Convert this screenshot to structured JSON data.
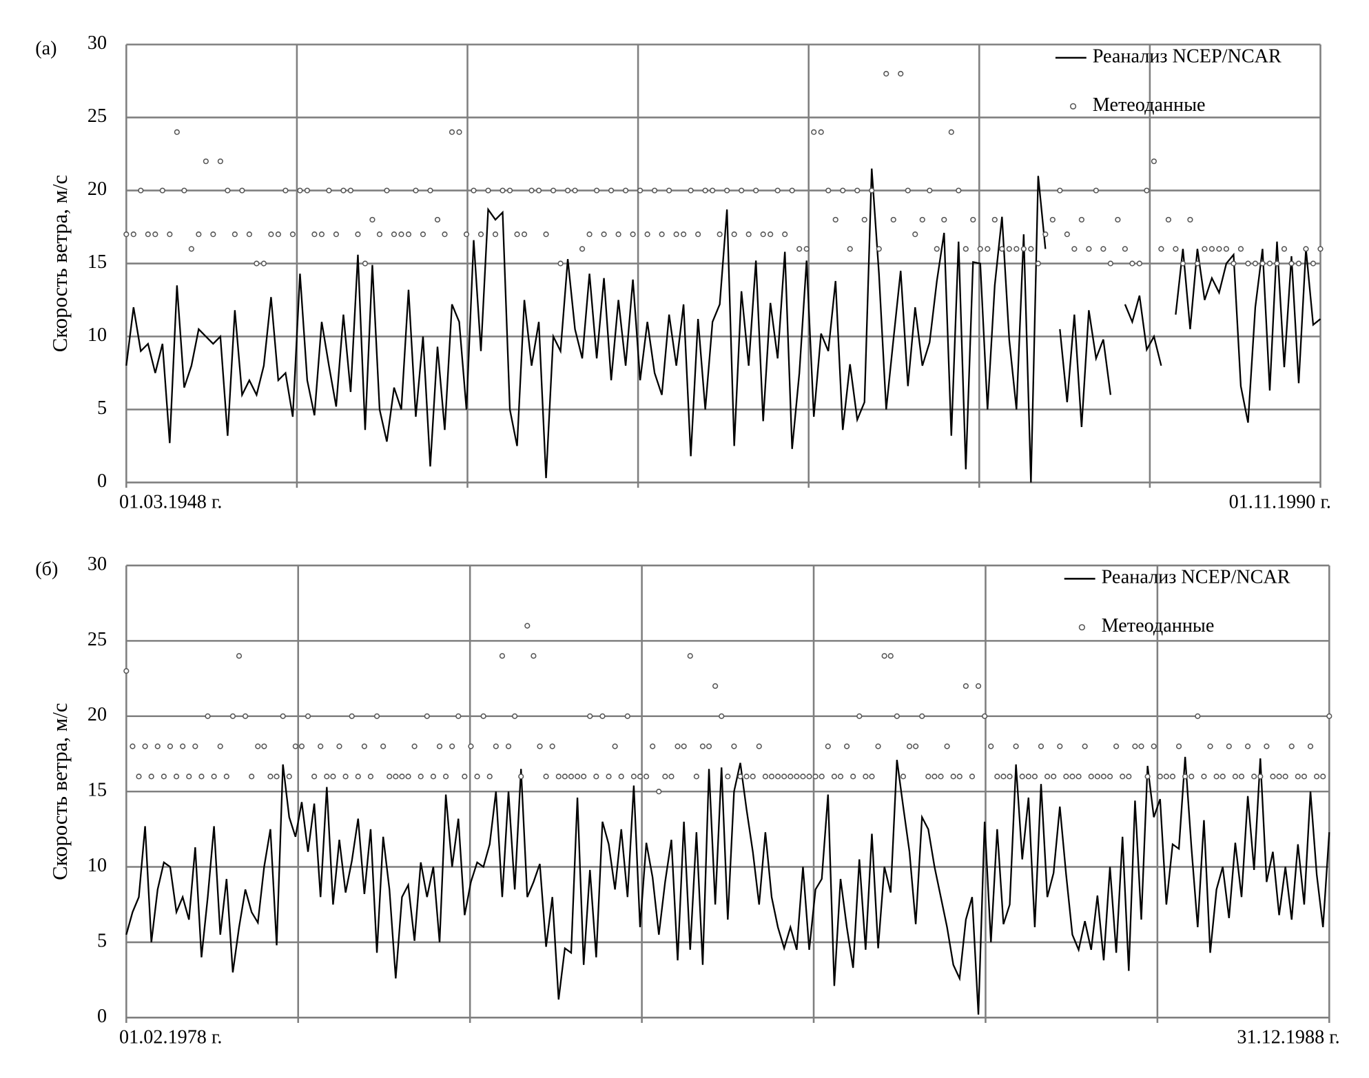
{
  "chart_data": [
    {
      "type": "line",
      "panel_label": "(a)",
      "ylabel": "Скорость ветра, м/с",
      "ylim": [
        0,
        30
      ],
      "yticks": [
        0,
        5,
        10,
        15,
        20,
        25,
        30
      ],
      "grid": true,
      "legend": "upper right",
      "categories": [
        "01.03.1948 г.",
        null,
        null,
        null,
        null,
        null,
        null,
        null,
        null,
        null,
        null,
        null,
        null,
        null,
        null,
        null,
        null,
        null,
        null,
        null,
        null,
        null,
        null,
        null,
        null,
        null,
        null,
        null,
        null,
        null,
        null,
        null,
        null,
        null,
        null,
        null,
        null,
        null,
        null,
        null,
        null,
        null,
        null,
        null,
        null,
        null,
        null,
        null,
        null,
        null,
        null,
        null,
        null,
        null,
        null,
        null,
        null,
        null,
        null,
        null,
        null,
        null,
        null,
        null,
        null,
        null,
        null,
        null,
        null,
        null,
        null,
        null,
        null,
        null,
        null,
        null,
        null,
        null,
        null,
        null,
        null,
        null,
        null,
        null,
        null,
        null,
        null,
        null,
        null,
        null,
        null,
        null,
        null,
        null,
        null,
        null,
        null,
        null,
        null,
        null,
        null,
        null,
        null,
        null,
        null,
        null,
        null,
        null,
        null,
        null,
        null,
        null,
        null,
        null,
        null,
        null,
        null,
        null,
        null,
        null,
        null,
        null,
        null,
        null,
        null,
        null,
        null,
        null,
        null,
        null,
        null,
        null,
        null,
        null,
        null,
        null,
        null,
        null,
        null,
        null,
        null,
        null,
        null,
        null,
        null,
        null,
        null,
        null,
        null,
        null,
        null,
        null,
        null,
        null,
        null,
        null,
        null,
        null,
        null,
        null,
        null,
        null,
        null,
        null,
        null,
        "01.11.1990 г."
      ],
      "series": [
        {
          "name": "Реанализ NCEP/NCAR",
          "type": "line",
          "color": "#000000",
          "values": [
            8,
            12,
            9,
            9.5,
            7.5,
            9.5,
            2.7,
            13.5,
            6.5,
            8,
            10.5,
            10,
            9.5,
            10,
            3.2,
            11.8,
            6,
            7,
            6,
            8,
            12.7,
            7,
            7.5,
            4.5,
            14.3,
            7,
            4.6,
            11,
            8,
            5.2,
            11.5,
            6.2,
            15.6,
            3.6,
            14.9,
            5,
            2.8,
            6.5,
            5,
            13.2,
            4.5,
            10,
            1.1,
            9.3,
            3.6,
            12.2,
            11,
            5,
            16.6,
            9,
            18.7,
            18,
            18.5,
            5,
            2.5,
            12.5,
            8,
            11,
            0.3,
            10,
            9,
            15.3,
            10.5,
            8.5,
            14.3,
            8.5,
            14,
            7,
            12.5,
            8,
            13.9,
            7,
            11,
            7.5,
            6,
            11.5,
            8,
            12.2,
            1.8,
            11.2,
            5,
            11,
            12.2,
            18.7,
            2.5,
            13.1,
            8,
            15.2,
            4.2,
            12.3,
            8.5,
            15.8,
            2.3,
            7.5,
            15.2,
            4.5,
            10.2,
            9,
            13.8,
            3.6,
            8.1,
            4.3,
            5.5,
            21.5,
            14.3,
            5,
            9.8,
            14.5,
            6.6,
            12,
            8,
            9.6,
            13.8,
            17.1,
            3.2,
            16.5,
            0.9,
            15.1,
            15,
            5,
            13.5,
            18.2,
            9.8,
            5,
            17,
            0,
            21,
            16,
            null,
            10.5,
            5.5,
            11.5,
            3.8,
            11.8,
            8.5,
            9.8,
            6,
            null,
            12.2,
            11,
            12.8,
            9.1,
            10,
            8,
            null,
            11.5,
            16,
            10.5,
            16,
            12.5,
            14,
            13,
            15,
            15.6,
            6.6,
            4.1,
            12,
            16,
            6.3,
            16.5,
            7.9,
            15.5,
            6.8,
            16,
            10.8,
            11.2
          ]
        },
        {
          "name": "Метеоданные",
          "type": "scatter",
          "color": "#555555",
          "values": [
            17,
            17,
            20,
            17,
            17,
            20,
            17,
            24,
            20,
            16,
            17,
            22,
            17,
            22,
            20,
            17,
            20,
            17,
            15,
            15,
            17,
            17,
            20,
            17,
            20,
            20,
            17,
            17,
            20,
            17,
            20,
            20,
            17,
            15,
            18,
            17,
            20,
            17,
            17,
            17,
            20,
            17,
            20,
            18,
            17,
            24,
            24,
            17,
            20,
            17,
            20,
            17,
            20,
            20,
            17,
            17,
            20,
            20,
            17,
            20,
            15,
            20,
            20,
            16,
            17,
            20,
            17,
            20,
            17,
            20,
            17,
            20,
            17,
            20,
            17,
            20,
            17,
            17,
            20,
            17,
            20,
            20,
            17,
            20,
            17,
            20,
            17,
            20,
            17,
            17,
            20,
            17,
            20,
            16,
            16,
            24,
            24,
            20,
            18,
            20,
            16,
            20,
            18,
            20,
            16,
            28,
            18,
            28,
            20,
            17,
            18,
            20,
            16,
            18,
            24,
            20,
            16,
            18,
            16,
            16,
            18,
            16,
            16,
            16,
            16,
            16,
            15,
            17,
            18,
            20,
            17,
            16,
            18,
            16,
            20,
            16,
            15,
            18,
            16,
            15,
            15,
            20,
            22,
            16,
            18,
            16,
            15,
            18,
            15,
            16,
            16,
            16,
            16,
            15,
            16,
            15,
            15,
            15,
            15,
            15,
            16,
            15,
            15,
            16,
            15,
            16
          ]
        }
      ]
    },
    {
      "type": "line",
      "panel_label": "(б)",
      "ylabel": "Скорость ветра, м/с",
      "ylim": [
        0,
        30
      ],
      "yticks": [
        0,
        5,
        10,
        15,
        20,
        25,
        30
      ],
      "grid": true,
      "legend": "upper right",
      "categories": [
        "01.02.1978 г.",
        null,
        null,
        null,
        null,
        null,
        null,
        null,
        null,
        null,
        null,
        null,
        null,
        null,
        null,
        null,
        null,
        null,
        null,
        null,
        null,
        null,
        null,
        null,
        null,
        null,
        null,
        null,
        null,
        null,
        null,
        null,
        null,
        null,
        null,
        null,
        null,
        null,
        null,
        null,
        null,
        null,
        null,
        null,
        null,
        null,
        null,
        null,
        null,
        null,
        null,
        null,
        null,
        null,
        null,
        null,
        null,
        null,
        null,
        null,
        null,
        null,
        null,
        null,
        null,
        null,
        null,
        null,
        null,
        null,
        null,
        null,
        null,
        null,
        null,
        null,
        null,
        null,
        null,
        null,
        null,
        null,
        null,
        null,
        null,
        null,
        null,
        null,
        null,
        null,
        null,
        null,
        null,
        null,
        null,
        null,
        null,
        null,
        null,
        null,
        null,
        null,
        null,
        null,
        null,
        null,
        null,
        null,
        null,
        null,
        null,
        null,
        null,
        null,
        null,
        null,
        null,
        null,
        null,
        null,
        null,
        null,
        null,
        null,
        null,
        null,
        null,
        null,
        null,
        null,
        null,
        null,
        null,
        null,
        null,
        null,
        null,
        null,
        null,
        null,
        null,
        null,
        null,
        null,
        null,
        null,
        null,
        null,
        null,
        null,
        null,
        null,
        null,
        null,
        null,
        null,
        null,
        null,
        null,
        null,
        null,
        null,
        null,
        null,
        null,
        null,
        null,
        null,
        null,
        null,
        null,
        null,
        null,
        null,
        null,
        null,
        null,
        null,
        null,
        null,
        null,
        null,
        null,
        null,
        null,
        null,
        null,
        null,
        null,
        null,
        null,
        null,
        "31.12.1988 г."
      ],
      "series": [
        {
          "name": "Реанализ NCEP/NCAR",
          "type": "line",
          "color": "#000000",
          "values": [
            5.5,
            7,
            8,
            12.7,
            5,
            8.5,
            10.3,
            10,
            7,
            8,
            6.5,
            11.3,
            4,
            8,
            12.7,
            5.5,
            9.2,
            3,
            6,
            8.5,
            7,
            6.3,
            10,
            12.5,
            4.8,
            16.8,
            13.3,
            12,
            14.3,
            11,
            14.2,
            8,
            15.3,
            7.5,
            11.8,
            8.3,
            10.4,
            13.2,
            8.2,
            12.5,
            4.3,
            12,
            8.5,
            2.6,
            8,
            8.8,
            5.1,
            10.3,
            8,
            10,
            5,
            14.8,
            10,
            13.2,
            6.8,
            9,
            10.3,
            10,
            11.5,
            15,
            8,
            15,
            8.5,
            16.5,
            8,
            9,
            10.2,
            4.7,
            8,
            1.2,
            4.6,
            4.3,
            14.6,
            3.5,
            9.8,
            4,
            13,
            11.5,
            8.5,
            12.5,
            8,
            15.4,
            6,
            11.6,
            9.3,
            5.5,
            9,
            11.8,
            3.8,
            13,
            4.5,
            12.3,
            3.5,
            16.5,
            7.5,
            16.6,
            6.5,
            15,
            16.9,
            13.8,
            11,
            7.5,
            12.3,
            8,
            6,
            4.6,
            6,
            4.5,
            10,
            4.5,
            8.5,
            9.2,
            14.8,
            2.1,
            9.2,
            6,
            3.3,
            10.5,
            4.5,
            12.2,
            4.6,
            10,
            8.3,
            17.1,
            14,
            11,
            6.2,
            13.3,
            12.5,
            10,
            8,
            6,
            3.5,
            2.6,
            6.5,
            8,
            0.2,
            13,
            5,
            12.5,
            6.2,
            7.5,
            16.8,
            10.5,
            14.6,
            6,
            15.5,
            8,
            9.6,
            14,
            9.5,
            5.5,
            4.5,
            6.4,
            4.5,
            8.1,
            3.8,
            10,
            4.3,
            12,
            3.1,
            14.4,
            6.5,
            16.7,
            13.3,
            14.5,
            7.5,
            11.5,
            11.2,
            17.3,
            11.3,
            6,
            13.1,
            4.3,
            8.5,
            10,
            6.6,
            11.6,
            8,
            14.7,
            9.8,
            17.2,
            9,
            11,
            6.8,
            10,
            6.5,
            11.5,
            7.5,
            15,
            9.5,
            6,
            12.3
          ]
        },
        {
          "name": "Метеоданные",
          "type": "scatter",
          "color": "#555555",
          "values": [
            23,
            18,
            16,
            18,
            16,
            18,
            16,
            18,
            16,
            18,
            16,
            18,
            16,
            20,
            16,
            18,
            16,
            20,
            24,
            20,
            16,
            18,
            18,
            16,
            16,
            20,
            16,
            18,
            18,
            20,
            16,
            18,
            16,
            16,
            18,
            16,
            20,
            16,
            18,
            16,
            20,
            18,
            16,
            16,
            16,
            16,
            18,
            16,
            20,
            16,
            18,
            16,
            18,
            20,
            16,
            18,
            16,
            20,
            16,
            18,
            24,
            18,
            20,
            16,
            26,
            24,
            18,
            16,
            18,
            16,
            16,
            16,
            16,
            16,
            20,
            16,
            20,
            16,
            18,
            16,
            20,
            16,
            16,
            16,
            18,
            15,
            16,
            16,
            18,
            18,
            24,
            16,
            18,
            18,
            22,
            20,
            16,
            18,
            16,
            16,
            16,
            18,
            16,
            16,
            16,
            16,
            16,
            16,
            16,
            16,
            16,
            16,
            18,
            16,
            16,
            18,
            16,
            20,
            16,
            16,
            18,
            24,
            24,
            20,
            16,
            18,
            18,
            20,
            16,
            16,
            16,
            18,
            16,
            16,
            22,
            16,
            22,
            20,
            18,
            16,
            16,
            16,
            18,
            16,
            16,
            16,
            18,
            16,
            16,
            18,
            16,
            16,
            16,
            18,
            16,
            16,
            16,
            16,
            18,
            16,
            16,
            18,
            18,
            16,
            18,
            16,
            16,
            16,
            18,
            16,
            16,
            20,
            16,
            18,
            16,
            16,
            18,
            16,
            16,
            18,
            16,
            16,
            18,
            16,
            16,
            16,
            18,
            16,
            16,
            18,
            16,
            16,
            20
          ]
        }
      ]
    }
  ]
}
